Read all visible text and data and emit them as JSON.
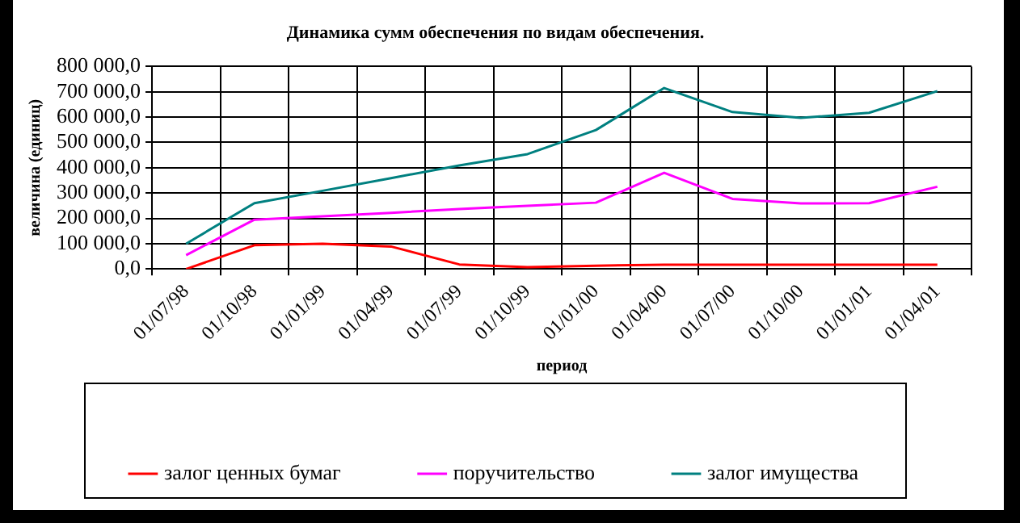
{
  "chart_data": {
    "type": "line",
    "title": "Динамика сумм обеспечения по видам обеспечения.",
    "xlabel": "период",
    "ylabel": "величина (единиц)",
    "categories": [
      "01/07/98",
      "01/10/98",
      "01/01/99",
      "01/04/99",
      "01/07/99",
      "01/10/99",
      "01/01/00",
      "01/04/00",
      "01/07/00",
      "01/10/00",
      "01/01/01",
      "01/04/01"
    ],
    "series": [
      {
        "name": "залог ценных бумаг",
        "color": "#ff0000",
        "values": [
          0,
          94000,
          100000,
          89000,
          18000,
          7000,
          13000,
          17000,
          17000,
          17000,
          17000,
          17000
        ]
      },
      {
        "name": "поручительство",
        "color": "#ff00ff",
        "values": [
          55000,
          195000,
          208000,
          222000,
          237000,
          250000,
          262000,
          380000,
          277000,
          259000,
          260000,
          325000
        ]
      },
      {
        "name": "залог имущества",
        "color": "#008080",
        "values": [
          100000,
          260000,
          309000,
          359000,
          409000,
          454000,
          549000,
          715000,
          620000,
          597000,
          617000,
          703000
        ]
      }
    ],
    "ylim": [
      0,
      800000
    ],
    "yticks": [
      {
        "value": 0,
        "label": "0,0"
      },
      {
        "value": 100000,
        "label": "100 000,0"
      },
      {
        "value": 200000,
        "label": "200 000,0"
      },
      {
        "value": 300000,
        "label": "300 000,0"
      },
      {
        "value": 400000,
        "label": "400 000,0"
      },
      {
        "value": 500000,
        "label": "500 000,0"
      },
      {
        "value": 600000,
        "label": "600 000,0"
      },
      {
        "value": 700000,
        "label": "700 000,0"
      },
      {
        "value": 800000,
        "label": "800 000,0"
      }
    ],
    "grid": true,
    "legend": "bottom",
    "marker": "none",
    "line_style": "solid"
  }
}
